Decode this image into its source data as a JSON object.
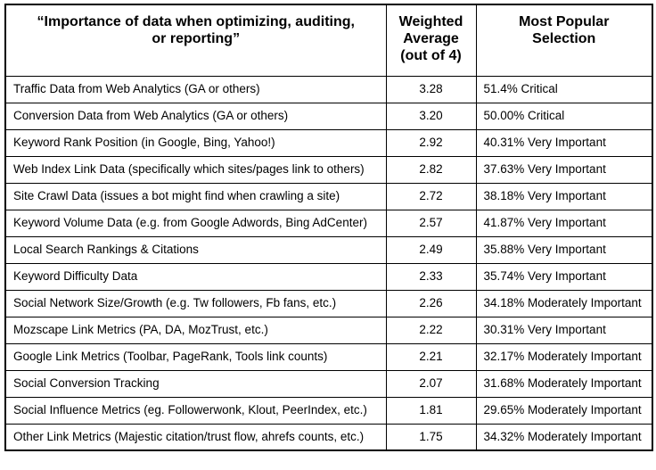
{
  "colors": {
    "border": "#000000",
    "text": "#000000",
    "background": "#ffffff"
  },
  "chart_data": {
    "type": "table",
    "title": "Importance of data when optimizing, auditing, or reporting",
    "headers": {
      "metric": "“Importance of data when optimizing, auditing,\nor reporting”",
      "weighted_average": "Weighted\nAverage\n(out of 4)",
      "most_popular": "Most Popular\nSelection"
    },
    "rows": [
      {
        "metric": "Traffic Data from Web Analytics (GA or others)",
        "weighted_average": "3.28",
        "most_popular": "51.4% Critical"
      },
      {
        "metric": "Conversion Data from Web Analytics (GA or others)",
        "weighted_average": "3.20",
        "most_popular": "50.00% Critical"
      },
      {
        "metric": "Keyword Rank Position (in Google, Bing, Yahoo!)",
        "weighted_average": "2.92",
        "most_popular": "40.31% Very Important"
      },
      {
        "metric": "Web Index Link Data (specifically which sites/pages link to others)",
        "weighted_average": "2.82",
        "most_popular": "37.63% Very Important"
      },
      {
        "metric": "Site Crawl Data (issues a bot might find when crawling a site)",
        "weighted_average": "2.72",
        "most_popular": "38.18% Very Important"
      },
      {
        "metric": "Keyword Volume Data (e.g. from Google Adwords, Bing AdCenter)",
        "weighted_average": "2.57",
        "most_popular": "41.87% Very Important"
      },
      {
        "metric": "Local Search Rankings & Citations",
        "weighted_average": "2.49",
        "most_popular": "35.88% Very Important"
      },
      {
        "metric": "Keyword Difficulty Data",
        "weighted_average": "2.33",
        "most_popular": "35.74% Very Important"
      },
      {
        "metric": "Social Network Size/Growth (e.g. Tw followers, Fb fans, etc.)",
        "weighted_average": "2.26",
        "most_popular": "34.18% Moderately Important"
      },
      {
        "metric": "Mozscape Link Metrics (PA, DA, MozTrust, etc.)",
        "weighted_average": "2.22",
        "most_popular": "30.31% Very Important"
      },
      {
        "metric": "Google Link Metrics (Toolbar, PageRank, Tools link counts)",
        "weighted_average": "2.21",
        "most_popular": "32.17% Moderately Important"
      },
      {
        "metric": "Social Conversion Tracking",
        "weighted_average": "2.07",
        "most_popular": "31.68% Moderately Important"
      },
      {
        "metric": "Social Influence Metrics (eg. Followerwonk, Klout, PeerIndex, etc.)",
        "weighted_average": "1.81",
        "most_popular": "29.65% Moderately Important"
      },
      {
        "metric": "Other Link Metrics (Majestic citation/trust flow, ahrefs counts, etc.)",
        "weighted_average": "1.75",
        "most_popular": "34.32% Moderately Important"
      }
    ]
  }
}
